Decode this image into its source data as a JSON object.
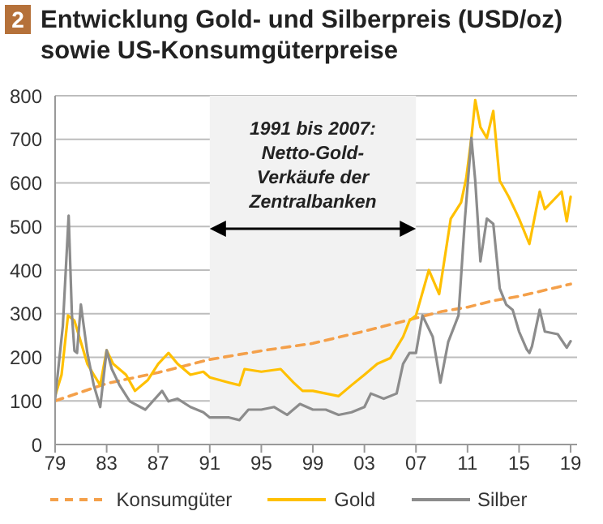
{
  "chart_data": {
    "type": "line",
    "title": "Entwicklung Gold- und Silberpreis (USD/oz) sowie US-Konsumgüterpreise",
    "annotations": [
      "2"
    ],
    "xlim": [
      1979,
      2019.5
    ],
    "xticks": [
      {
        "value": 1979,
        "label": "79"
      },
      {
        "value": 1983,
        "label": "83"
      },
      {
        "value": 1987,
        "label": "87"
      },
      {
        "value": 1991,
        "label": "91"
      },
      {
        "value": 1995,
        "label": "95"
      },
      {
        "value": 1999,
        "label": "99"
      },
      {
        "value": 2003,
        "label": "03"
      },
      {
        "value": 2007,
        "label": "07"
      },
      {
        "value": 2011,
        "label": "11"
      },
      {
        "value": 2015,
        "label": "15"
      },
      {
        "value": 2019,
        "label": "19"
      }
    ],
    "ylim": [
      0,
      800
    ],
    "yticks": [
      0,
      100,
      200,
      300,
      400,
      500,
      600,
      700,
      800
    ],
    "grid": "y",
    "legend": "bottom",
    "marker": "none",
    "bands": [
      {
        "axis": "x",
        "from": 1991,
        "to": 2007,
        "label": "1991 bis 2007: Netto-Gold-Verkäufe der Zentralbanken",
        "color": "#f2f2f2"
      }
    ],
    "series": [
      {
        "name": "Konsumgüter",
        "color": "#f4a04a",
        "line_style": "dashed",
        "x": [
          1979,
          1983,
          1987,
          1991,
          1995,
          1999,
          2003,
          2007,
          2009,
          2011,
          2013,
          2015,
          2019
        ],
        "values": [
          100,
          140,
          165,
          195,
          215,
          232,
          260,
          290,
          305,
          315,
          330,
          340,
          368
        ]
      },
      {
        "name": "Gold",
        "color": "#ffc000",
        "line_style": "solid",
        "x": [
          1979,
          1979.5,
          1980,
          1980.5,
          1981,
          1981.5,
          1982,
          1982.5,
          1983,
          1983.5,
          1984.5,
          1985.2,
          1986.2,
          1987,
          1987.8,
          1988.5,
          1989.5,
          1990.5,
          1991,
          1992.5,
          1993.3,
          1993.7,
          1995,
          1996.5,
          1997.5,
          1998.2,
          1999,
          2000,
          2001,
          2002,
          2003,
          2004,
          2005,
          2006,
          2006.5,
          2007,
          2008,
          2008.8,
          2009.7,
          2010.5,
          2010.9,
          2011.3,
          2011.6,
          2012,
          2012.5,
          2013,
          2013.5,
          2014.2,
          2014.7,
          2015,
          2015.8,
          2016.6,
          2017,
          2018.3,
          2018.7,
          2019
        ],
        "values": [
          111,
          160,
          296,
          284,
          235,
          185,
          160,
          136,
          216,
          185,
          160,
          123,
          148,
          185,
          210,
          185,
          160,
          167,
          154,
          142,
          136,
          173,
          167,
          173,
          142,
          123,
          123,
          117,
          111,
          136,
          160,
          185,
          198,
          247,
          284,
          296,
          400,
          345,
          518,
          555,
          611,
          703,
          790,
          728,
          703,
          765,
          605,
          568,
          537,
          518,
          460,
          580,
          540,
          580,
          512,
          568
        ]
      },
      {
        "name": "Silber",
        "color": "#8c8c8c",
        "line_style": "solid",
        "x": [
          1979,
          1979.6,
          1980.05,
          1980.3,
          1980.5,
          1980.7,
          1981,
          1981.5,
          1982,
          1982.5,
          1983,
          1983.4,
          1984,
          1984.8,
          1986,
          1987.3,
          1987.8,
          1988.5,
          1989.5,
          1990.5,
          1991,
          1992.5,
          1993.3,
          1994,
          1995,
          1996,
          1997,
          1998,
          1999,
          2000,
          2001,
          2002,
          2003,
          2003.5,
          2004.5,
          2005.5,
          2006,
          2006.5,
          2007,
          2007.5,
          2008.3,
          2008.9,
          2009.5,
          2010.3,
          2010.8,
          2011.3,
          2011.6,
          2012,
          2012.5,
          2013,
          2013.5,
          2014,
          2014.5,
          2015,
          2015.6,
          2015.8,
          2016,
          2016.6,
          2017,
          2018,
          2018.7,
          2019
        ],
        "values": [
          105,
          272,
          525,
          300,
          215,
          210,
          321,
          210,
          136,
          86,
          216,
          173,
          136,
          99,
          80,
          123,
          99,
          105,
          86,
          74,
          62,
          62,
          56,
          80,
          80,
          86,
          68,
          93,
          80,
          80,
          68,
          74,
          86,
          117,
          105,
          117,
          185,
          210,
          210,
          296,
          247,
          142,
          235,
          296,
          518,
          703,
          605,
          420,
          518,
          506,
          358,
          321,
          309,
          259,
          218,
          210,
          225,
          309,
          259,
          253,
          222,
          237
        ]
      }
    ]
  }
}
